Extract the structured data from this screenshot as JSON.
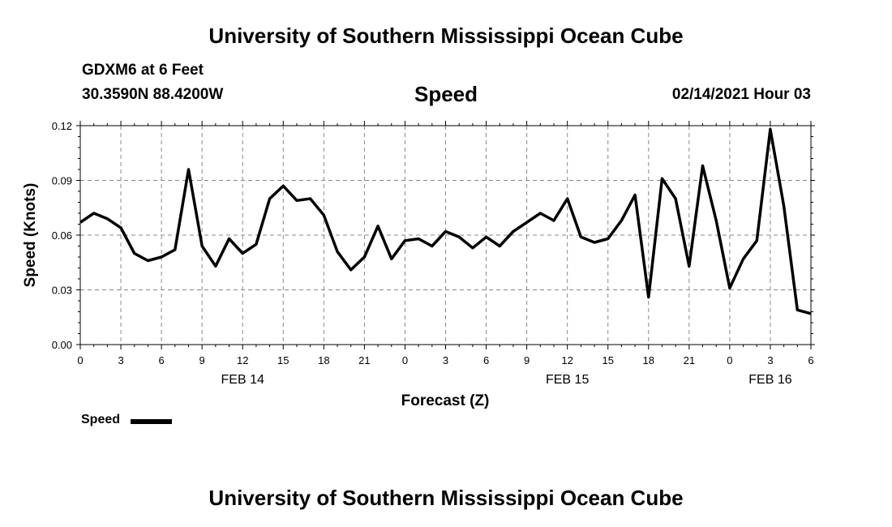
{
  "header": {
    "title_top": "University of Southern Mississippi Ocean Cube",
    "title_bottom": "University of Southern Mississippi Ocean Cube",
    "station": "GDXM6 at 6 Feet",
    "coords": "30.3590N 88.4200W",
    "datetime": "02/14/2021 Hour 03"
  },
  "legend": {
    "label": "Speed"
  },
  "chart_data": {
    "type": "line",
    "title": "Speed",
    "xlabel": "Forecast (Z)",
    "ylabel": "Speed (Knots)",
    "ylim": [
      0,
      0.12
    ],
    "yticks": [
      "0.00",
      "0.03",
      "0.06",
      "0.09",
      "0.12"
    ],
    "xlim": [
      0,
      54
    ],
    "xticks": [
      "0",
      "3",
      "6",
      "9",
      "12",
      "15",
      "18",
      "21",
      "0",
      "3",
      "6",
      "9",
      "12",
      "15",
      "18",
      "21",
      "0",
      "3",
      "6"
    ],
    "date_labels": [
      {
        "label": "FEB 14",
        "at_hour": 12
      },
      {
        "label": "FEB 15",
        "at_hour": 36
      },
      {
        "label": "FEB 16",
        "at_hour": 51
      }
    ],
    "grid": true,
    "series": [
      {
        "name": "Speed",
        "color": "#000000",
        "x": [
          0,
          1,
          2,
          3,
          4,
          5,
          6,
          7,
          8,
          9,
          10,
          11,
          12,
          13,
          14,
          15,
          16,
          17,
          18,
          19,
          20,
          21,
          22,
          23,
          24,
          25,
          26,
          27,
          28,
          29,
          30,
          31,
          32,
          33,
          34,
          35,
          36,
          37,
          38,
          39,
          40,
          41,
          42,
          43,
          44,
          45,
          46,
          47,
          48,
          49,
          50,
          51,
          52,
          53,
          54
        ],
        "values": [
          0.067,
          0.072,
          0.069,
          0.064,
          0.05,
          0.046,
          0.048,
          0.052,
          0.096,
          0.054,
          0.043,
          0.058,
          0.05,
          0.055,
          0.08,
          0.087,
          0.079,
          0.08,
          0.071,
          0.051,
          0.041,
          0.048,
          0.065,
          0.047,
          0.057,
          0.058,
          0.054,
          0.062,
          0.059,
          0.053,
          0.059,
          0.054,
          0.062,
          0.067,
          0.072,
          0.068,
          0.08,
          0.059,
          0.056,
          0.058,
          0.068,
          0.082,
          0.026,
          0.091,
          0.08,
          0.043,
          0.098,
          0.068,
          0.031,
          0.047,
          0.057,
          0.118,
          0.076,
          0.019,
          0.017
        ]
      }
    ]
  }
}
